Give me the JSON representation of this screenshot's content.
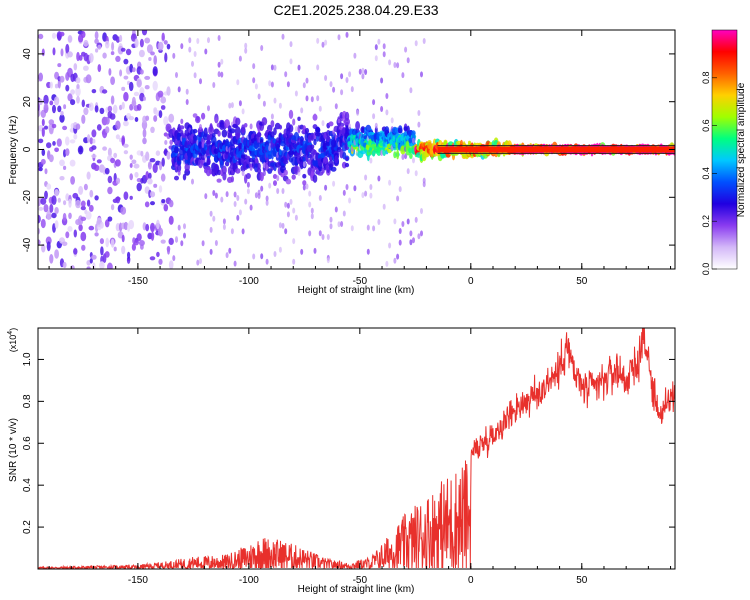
{
  "title": "C2E1.2025.238.04.29.E33",
  "chart_data": [
    {
      "type": "heatmap",
      "title": "C2E1.2025.238.04.29.E33",
      "xlabel": "Height of straight line (km)",
      "ylabel": "Frequency (Hz)",
      "xlim": [
        -195,
        92
      ],
      "ylim": [
        -50,
        50
      ],
      "xticks": [
        -150,
        -100,
        -50,
        0,
        50
      ],
      "yticks": [
        -40,
        -20,
        0,
        20,
        40
      ],
      "colorbar": {
        "label": "Normalized spectral amplitude",
        "range": [
          0,
          1
        ],
        "ticks": [
          0.0,
          0.2,
          0.4,
          0.6,
          0.8
        ],
        "tick_labels": [
          "0.0",
          "0.2",
          "0.4",
          "0.6",
          "0.8"
        ],
        "colormap": [
          "#ffffff",
          "#d4b8f8",
          "#8a3cf0",
          "#2000e0",
          "#0050ff",
          "#00c8ff",
          "#00ff80",
          "#a0ff00",
          "#ffd000",
          "#ff6000",
          "#ff0000",
          "#ff00c0"
        ]
      },
      "description_regions": [
        {
          "x_from": -195,
          "x_to": -135,
          "amplitude": 0.15,
          "freq_spread": 50
        },
        {
          "x_from": -135,
          "x_to": -55,
          "amplitude": 0.25,
          "freq_spread": 12
        },
        {
          "x_from": -55,
          "x_to": -25,
          "amplitude": 0.45,
          "freq_spread": 6
        },
        {
          "x_from": -25,
          "x_to": 18,
          "amplitude": 0.7,
          "freq_spread": 3
        },
        {
          "x_from": 18,
          "x_to": 92,
          "amplitude": 0.95,
          "freq_spread": 1
        }
      ]
    },
    {
      "type": "line",
      "xlabel": "Height of straight line (km)",
      "ylabel": "SNR (10 * v/v)",
      "y_multiplier": "(x10",
      "y_multiplier_exp": "4",
      "xlim": [
        -195,
        92
      ],
      "ylim": [
        0,
        1.15
      ],
      "xticks": [
        -150,
        -100,
        -50,
        0,
        50
      ],
      "yticks": [
        0.2,
        0.4,
        0.6,
        0.8,
        1.0
      ],
      "color": "#e8302c",
      "envelope": {
        "x": [
          -195,
          -170,
          -150,
          -135,
          -125,
          -110,
          -100,
          -95,
          -85,
          -75,
          -65,
          -55,
          -45,
          -38,
          -30,
          -20,
          -10,
          0,
          5,
          10,
          15,
          20,
          25,
          30,
          35,
          40,
          43,
          47,
          52,
          58,
          62,
          66,
          70,
          75,
          78,
          82,
          86,
          90,
          92
        ],
        "y": [
          0.01,
          0.015,
          0.02,
          0.04,
          0.06,
          0.07,
          0.12,
          0.16,
          0.14,
          0.1,
          0.05,
          0.03,
          0.06,
          0.15,
          0.26,
          0.36,
          0.46,
          0.55,
          0.6,
          0.64,
          0.7,
          0.77,
          0.8,
          0.83,
          0.9,
          0.95,
          1.08,
          0.92,
          0.85,
          0.88,
          0.92,
          0.95,
          0.9,
          0.98,
          1.12,
          0.85,
          0.72,
          0.82,
          0.84
        ]
      }
    }
  ]
}
